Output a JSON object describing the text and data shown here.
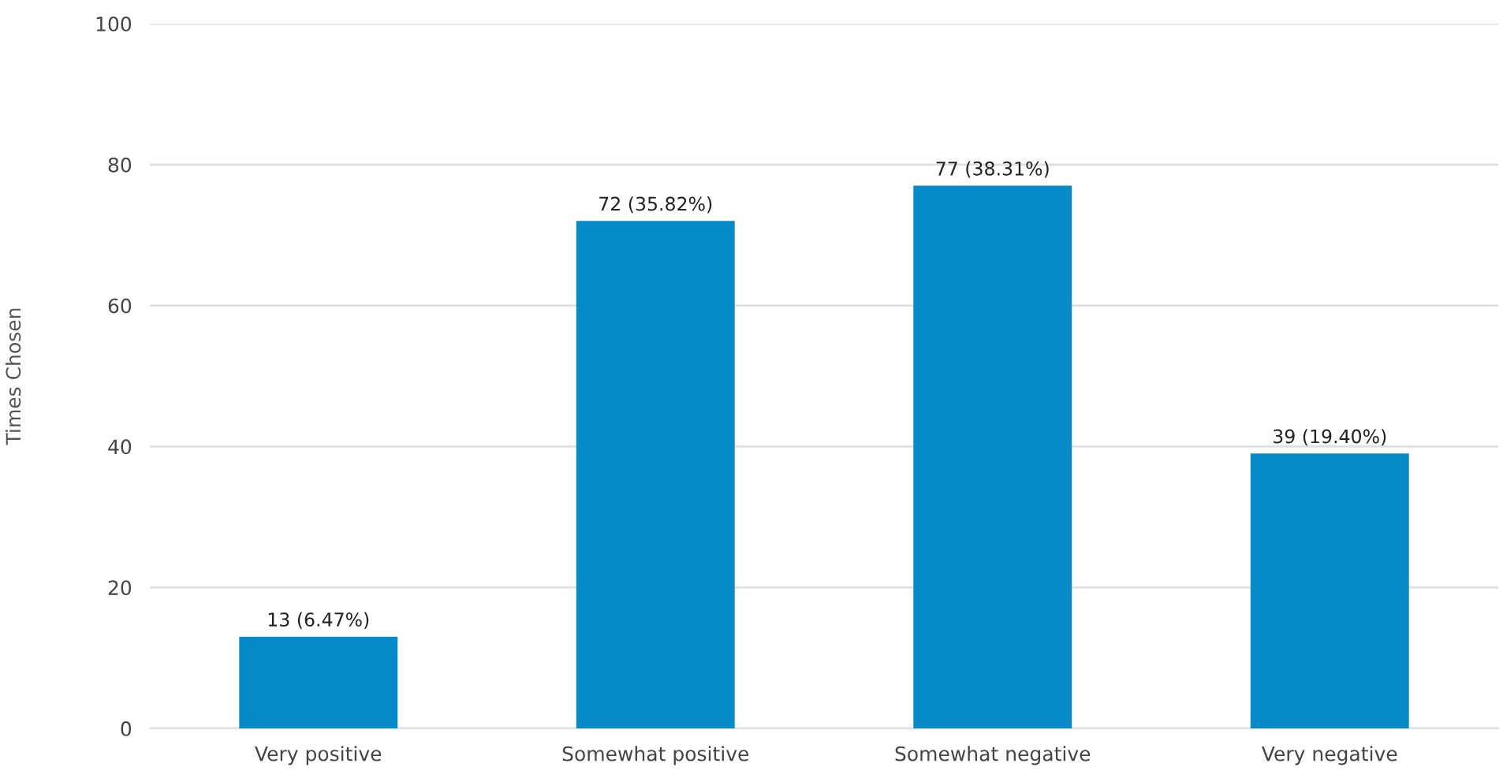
{
  "chart_data": {
    "type": "bar",
    "ylabel": "Times Chosen",
    "categories": [
      "Very positive",
      "Somewhat positive",
      "Somewhat negative",
      "Very negative"
    ],
    "values": [
      13,
      72,
      77,
      39
    ],
    "value_labels": [
      "13 (6.47%)",
      "72 (35.82%)",
      "77 (38.31%)",
      "39 (19.40%)"
    ],
    "color": "#078bc8",
    "ylim": [
      0,
      100
    ],
    "yticks": [
      0,
      20,
      40,
      60,
      80,
      100
    ],
    "grid": "y"
  }
}
